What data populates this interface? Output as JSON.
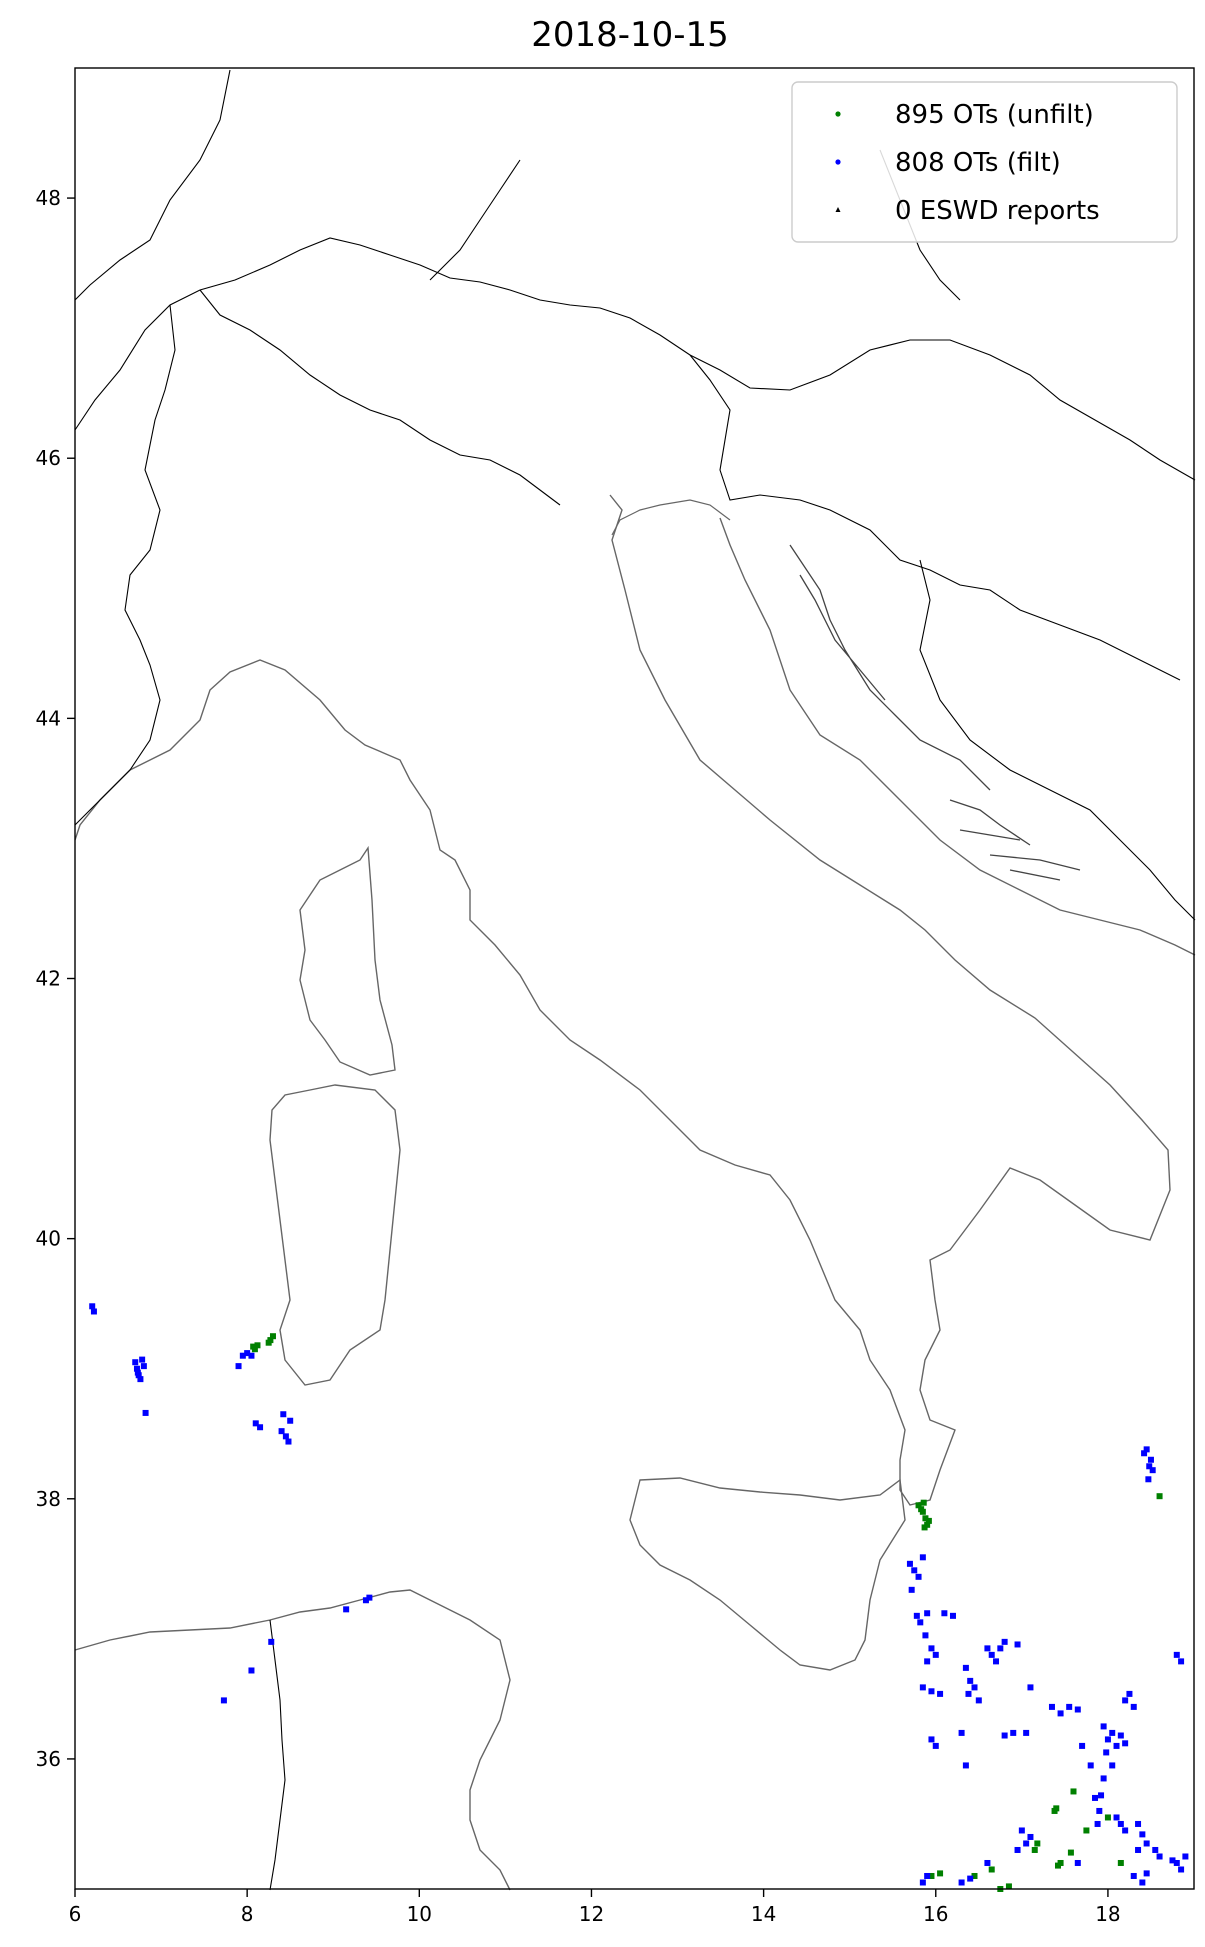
{
  "chart_data": {
    "type": "scatter",
    "title": "2018-10-15",
    "xlim": [
      6,
      19
    ],
    "ylim": [
      35,
      49
    ],
    "xticks": [
      6,
      8,
      10,
      12,
      14,
      16,
      18
    ],
    "yticks": [
      36,
      38,
      40,
      42,
      44,
      46,
      48
    ],
    "legend_placement": "top-right",
    "series": [
      {
        "name": "895 OTs (unfilt)",
        "color": "#008000",
        "marker": "dot",
        "points": [
          [
            8.07,
            39.17
          ],
          [
            8.09,
            39.15
          ],
          [
            8.12,
            39.18
          ],
          [
            8.27,
            39.22
          ],
          [
            8.3,
            39.25
          ],
          [
            8.25,
            39.2
          ],
          [
            15.8,
            37.95
          ],
          [
            15.85,
            37.9
          ],
          [
            15.88,
            37.85
          ],
          [
            15.9,
            37.8
          ],
          [
            15.83,
            37.92
          ],
          [
            15.87,
            37.78
          ],
          [
            15.92,
            37.83
          ],
          [
            15.86,
            37.97
          ],
          [
            18.6,
            38.02
          ],
          [
            17.4,
            35.62
          ],
          [
            17.38,
            35.6
          ],
          [
            17.6,
            35.75
          ],
          [
            17.15,
            35.3
          ],
          [
            17.18,
            35.35
          ],
          [
            17.75,
            35.45
          ],
          [
            17.45,
            35.2
          ],
          [
            17.42,
            35.18
          ],
          [
            17.57,
            35.28
          ],
          [
            15.95,
            35.1
          ],
          [
            16.05,
            35.12
          ],
          [
            16.45,
            35.1
          ],
          [
            16.65,
            35.15
          ],
          [
            16.75,
            35.0
          ],
          [
            16.85,
            35.02
          ],
          [
            18.15,
            35.2
          ],
          [
            18.0,
            35.55
          ]
        ]
      },
      {
        "name": "808 OTs (filt)",
        "color": "#0000ff",
        "marker": "dot",
        "points": [
          [
            6.2,
            39.48
          ],
          [
            6.22,
            39.44
          ],
          [
            6.7,
            39.05
          ],
          [
            6.72,
            39.0
          ],
          [
            6.74,
            38.95
          ],
          [
            6.78,
            39.07
          ],
          [
            6.76,
            38.92
          ],
          [
            6.8,
            39.02
          ],
          [
            6.73,
            38.97
          ],
          [
            6.82,
            38.66
          ],
          [
            7.95,
            39.1
          ],
          [
            8.0,
            39.12
          ],
          [
            8.05,
            39.1
          ],
          [
            7.9,
            39.02
          ],
          [
            8.1,
            38.58
          ],
          [
            8.15,
            38.55
          ],
          [
            8.4,
            38.52
          ],
          [
            8.45,
            38.48
          ],
          [
            8.5,
            38.6
          ],
          [
            8.42,
            38.65
          ],
          [
            8.48,
            38.44
          ],
          [
            8.28,
            36.9
          ],
          [
            8.05,
            36.68
          ],
          [
            7.73,
            36.45
          ],
          [
            9.15,
            37.15
          ],
          [
            9.38,
            37.22
          ],
          [
            9.42,
            37.24
          ],
          [
            18.45,
            38.38
          ],
          [
            18.5,
            38.3
          ],
          [
            18.48,
            38.25
          ],
          [
            18.42,
            38.35
          ],
          [
            18.52,
            38.22
          ],
          [
            18.47,
            38.15
          ],
          [
            15.7,
            37.5
          ],
          [
            15.75,
            37.45
          ],
          [
            15.8,
            37.4
          ],
          [
            15.85,
            37.55
          ],
          [
            15.72,
            37.3
          ],
          [
            15.78,
            37.1
          ],
          [
            15.82,
            37.05
          ],
          [
            15.9,
            37.12
          ],
          [
            15.88,
            36.95
          ],
          [
            16.1,
            37.12
          ],
          [
            16.2,
            37.1
          ],
          [
            15.95,
            36.85
          ],
          [
            16.0,
            36.8
          ],
          [
            15.9,
            36.75
          ],
          [
            16.35,
            36.7
          ],
          [
            16.4,
            36.6
          ],
          [
            16.45,
            36.55
          ],
          [
            16.5,
            36.45
          ],
          [
            16.38,
            36.5
          ],
          [
            16.6,
            36.85
          ],
          [
            16.65,
            36.8
          ],
          [
            16.7,
            36.75
          ],
          [
            16.75,
            36.85
          ],
          [
            16.8,
            36.9
          ],
          [
            16.95,
            36.88
          ],
          [
            15.85,
            36.55
          ],
          [
            15.95,
            36.52
          ],
          [
            16.05,
            36.5
          ],
          [
            17.1,
            36.55
          ],
          [
            17.35,
            36.4
          ],
          [
            17.45,
            36.35
          ],
          [
            17.55,
            36.4
          ],
          [
            17.65,
            36.38
          ],
          [
            18.25,
            36.5
          ],
          [
            18.3,
            36.4
          ],
          [
            18.2,
            36.45
          ],
          [
            17.95,
            36.25
          ],
          [
            18.0,
            36.15
          ],
          [
            18.05,
            36.2
          ],
          [
            18.1,
            36.1
          ],
          [
            17.98,
            36.05
          ],
          [
            18.15,
            36.18
          ],
          [
            18.2,
            36.12
          ],
          [
            16.9,
            36.2
          ],
          [
            16.8,
            36.18
          ],
          [
            17.05,
            36.2
          ],
          [
            15.95,
            36.15
          ],
          [
            16.0,
            36.1
          ],
          [
            16.3,
            36.2
          ],
          [
            16.35,
            35.95
          ],
          [
            17.7,
            36.1
          ],
          [
            17.8,
            35.95
          ],
          [
            18.05,
            35.95
          ],
          [
            17.95,
            35.85
          ],
          [
            17.85,
            35.7
          ],
          [
            17.9,
            35.6
          ],
          [
            17.88,
            35.5
          ],
          [
            17.92,
            35.72
          ],
          [
            18.1,
            35.55
          ],
          [
            18.15,
            35.5
          ],
          [
            18.2,
            35.45
          ],
          [
            18.35,
            35.5
          ],
          [
            18.4,
            35.42
          ],
          [
            17.0,
            35.45
          ],
          [
            17.1,
            35.4
          ],
          [
            17.05,
            35.35
          ],
          [
            18.55,
            35.3
          ],
          [
            18.6,
            35.25
          ],
          [
            18.45,
            35.35
          ],
          [
            18.35,
            35.3
          ],
          [
            18.8,
            35.2
          ],
          [
            18.85,
            35.15
          ],
          [
            18.9,
            35.25
          ],
          [
            18.75,
            35.22
          ],
          [
            18.3,
            35.1
          ],
          [
            18.4,
            35.05
          ],
          [
            18.45,
            35.12
          ],
          [
            15.85,
            35.05
          ],
          [
            15.9,
            35.1
          ],
          [
            16.3,
            35.05
          ],
          [
            16.4,
            35.08
          ],
          [
            16.6,
            35.2
          ],
          [
            18.8,
            36.8
          ],
          [
            18.85,
            36.75
          ],
          [
            16.95,
            35.3
          ],
          [
            17.65,
            35.2
          ]
        ]
      },
      {
        "name": "0 ESWD reports",
        "color": "#000000",
        "marker": "triangle",
        "points": []
      }
    ],
    "map_layers": [
      {
        "name": "coastlines",
        "color": "#666666"
      },
      {
        "name": "country-borders",
        "color": "#000000"
      }
    ]
  }
}
